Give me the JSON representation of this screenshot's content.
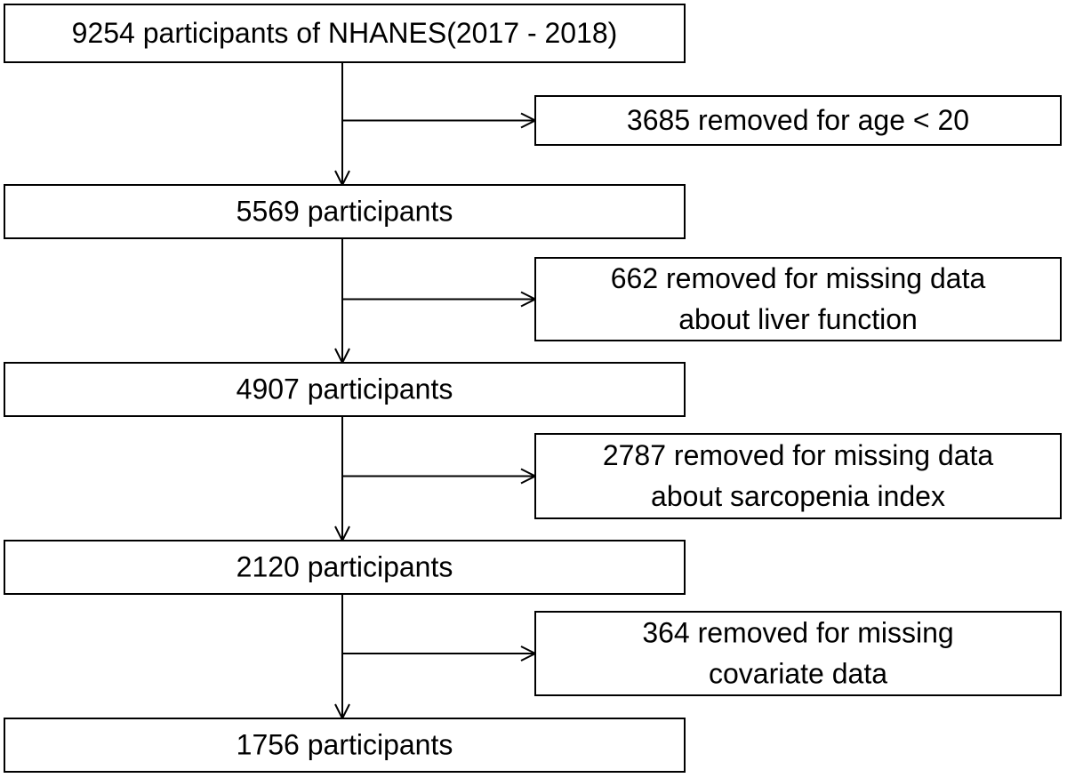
{
  "nodes": [
    {
      "label": "9254 participants of NHANES(2017 - 2018)"
    },
    {
      "label": "5569 participants"
    },
    {
      "label": "4907 participants"
    },
    {
      "label": "2120 participants"
    },
    {
      "label": "1756 participants"
    }
  ],
  "exclusions": [
    {
      "lines": [
        "3685 removed for age < 20"
      ]
    },
    {
      "lines": [
        "662 removed for missing data",
        "about liver function"
      ]
    },
    {
      "lines": [
        "2787 removed for missing data",
        "about sarcopenia index"
      ]
    },
    {
      "lines": [
        "364 removed for missing",
        "covariate data"
      ]
    }
  ]
}
